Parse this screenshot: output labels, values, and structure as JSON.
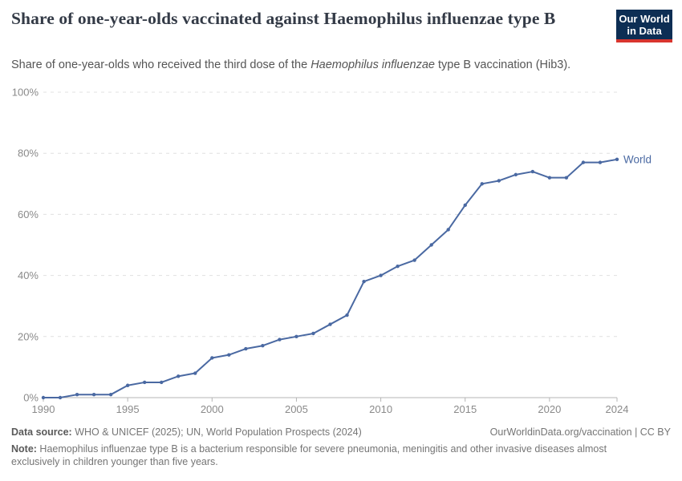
{
  "header": {
    "title": "Share of one-year-olds vaccinated against Haemophilus influenzae type B",
    "subtitle_prefix": "Share of one-year-olds who received the third dose of the ",
    "subtitle_italic": "Haemophilus influenzae",
    "subtitle_suffix": " type B vaccination (Hib3).",
    "logo": {
      "line1": "Our World",
      "line2": "in Data",
      "bg_color": "#0d2e54",
      "accent_color": "#d8352e"
    }
  },
  "chart_data": {
    "type": "line",
    "title": "Share of one-year-olds vaccinated against Haemophilus influenzae type B",
    "xlabel": "",
    "ylabel": "",
    "xlim": [
      1990,
      2024
    ],
    "ylim": [
      0,
      100
    ],
    "grid": "horizontal-dashed",
    "legend_position": "end-of-line",
    "x_tick_values": [
      1990,
      1995,
      2000,
      2005,
      2010,
      2015,
      2020,
      2024
    ],
    "x_tick_labels": [
      "1990",
      "1995",
      "2000",
      "2005",
      "2010",
      "2015",
      "2020",
      "2024"
    ],
    "y_tick_values": [
      0,
      20,
      40,
      60,
      80,
      100
    ],
    "y_tick_labels": [
      "0%",
      "20%",
      "40%",
      "60%",
      "80%",
      "100%"
    ],
    "series": [
      {
        "name": "World",
        "color": "#4a69a2",
        "x": [
          1990,
          1991,
          1992,
          1993,
          1994,
          1995,
          1996,
          1997,
          1998,
          1999,
          2000,
          2001,
          2002,
          2003,
          2004,
          2005,
          2006,
          2007,
          2008,
          2009,
          2010,
          2011,
          2012,
          2013,
          2014,
          2015,
          2016,
          2017,
          2018,
          2019,
          2020,
          2021,
          2022,
          2023,
          2024
        ],
        "values": [
          0,
          0,
          1,
          1,
          1,
          4,
          5,
          5,
          7,
          8,
          13,
          14,
          16,
          17,
          19,
          20,
          21,
          24,
          27,
          38,
          40,
          43,
          45,
          50,
          55,
          63,
          70,
          71,
          73,
          74,
          72,
          72,
          77,
          77,
          78
        ]
      }
    ],
    "colors": {
      "grid": "#e0e0e0",
      "axis": "#b5b5b5",
      "tick_label": "#8a8a8a"
    }
  },
  "footer": {
    "datasource_label": "Data source:",
    "datasource_text": " WHO & UNICEF (2025); UN, World Population Prospects (2024)",
    "rights_text": "OurWorldinData.org/vaccination | CC BY",
    "note_label": "Note:",
    "note_text": " Haemophilus influenzae type B is a bacterium responsible for severe pneumonia, meningitis and other invasive diseases almost exclusively in children younger than five years."
  }
}
